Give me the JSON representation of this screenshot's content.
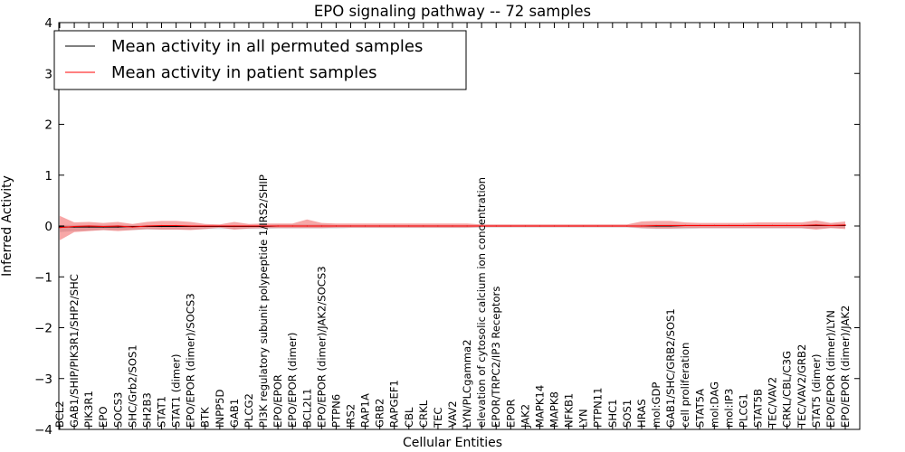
{
  "chart_data": {
    "type": "line",
    "title": "EPO signaling pathway -- 72 samples",
    "xlabel": "Cellular Entities",
    "ylabel": "Inferred Activity",
    "ylim": [
      -4,
      4
    ],
    "yticks": [
      4,
      3,
      2,
      1,
      0,
      -1,
      -2,
      -3,
      -4
    ],
    "ytick_labels": [
      "4",
      "3",
      "2",
      "1",
      "0",
      "−1",
      "−2",
      "−3",
      "−4"
    ],
    "categories": [
      "BCL2",
      "GAB1/SHIP/PIK3R1/SHP2/SHC",
      "PIK3R1",
      "EPO",
      "SOCS3",
      "SHC/Grb2/SOS1",
      "SH2B3",
      "STAT1",
      "STAT1 (dimer)",
      "EPO/EPOR (dimer)/SOCS3",
      "BTK",
      "INPP5D",
      "GAB1",
      "PLCG2",
      "PI3K regulatory subunit polypeptide 1/IRS2/SHIP",
      "EPO/EPOR",
      "EPO/EPOR (dimer)",
      "BCL2L1",
      "EPO/EPOR (dimer)/JAK2/SOCS3",
      "PTPN6",
      "IRS2",
      "RAP1A",
      "GRB2",
      "RAPGEF1",
      "CBL",
      "CRKL",
      "TEC",
      "VAV2",
      "LYN/PLCgamma2",
      "elevation of cytosolic calcium ion concentration",
      "EPOR/TRPC2/IP3 Receptors",
      "EPOR",
      "JAK2",
      "MAPK14",
      "MAPK8",
      "NFKB1",
      "LYN",
      "PTPN11",
      "SHC1",
      "SOS1",
      "HRAS",
      "mol:GDP",
      "GAB1/SHC/GRB2/SOS1",
      "cell proliferation",
      "STAT5A",
      "mol:DAG",
      "mol:IP3",
      "PLCG1",
      "STAT5B",
      "TEC/VAV2",
      "CRKL/CBL/C3G",
      "TEC/VAV2/GRB2",
      "STAT5 (dimer)",
      "EPO/EPOR (dimer)/LYN",
      "EPO/EPOR (dimer)/JAK2"
    ],
    "series": [
      {
        "name": "Mean activity in all permuted samples",
        "color": "#000000",
        "values": [
          -0.02,
          -0.02,
          -0.02,
          -0.02,
          -0.02,
          -0.01,
          -0.01,
          -0.01,
          -0.01,
          -0.01,
          -0.01,
          -0.01,
          -0.01,
          -0.01,
          -0.01,
          0.0,
          0.0,
          0.0,
          0.0,
          0.0,
          0.0,
          0.0,
          0.0,
          0.0,
          0.0,
          0.0,
          0.0,
          0.0,
          0.0,
          0.0,
          0.0,
          0.0,
          0.0,
          0.0,
          0.0,
          0.0,
          0.0,
          0.0,
          0.0,
          0.0,
          0.0,
          0.0,
          0.0,
          0.01,
          0.01,
          0.01,
          0.01,
          0.01,
          0.01,
          0.01,
          0.01,
          0.01,
          0.01,
          0.01,
          0.01
        ],
        "band_lower": [
          -0.12,
          -0.1,
          -0.09,
          -0.08,
          -0.08,
          -0.08,
          -0.07,
          -0.07,
          -0.07,
          -0.07,
          -0.06,
          -0.06,
          -0.06,
          -0.06,
          -0.06,
          -0.05,
          -0.05,
          -0.05,
          -0.05,
          -0.05,
          -0.04,
          -0.04,
          -0.04,
          -0.04,
          -0.04,
          -0.04,
          -0.04,
          -0.04,
          -0.04,
          -0.03,
          -0.03,
          -0.03,
          -0.03,
          -0.03,
          -0.03,
          -0.03,
          -0.03,
          -0.03,
          -0.03,
          -0.03,
          -0.05,
          -0.06,
          -0.06,
          -0.06,
          -0.05,
          -0.05,
          -0.05,
          -0.05,
          -0.05,
          -0.05,
          -0.05,
          -0.05,
          -0.05,
          -0.04,
          -0.04
        ],
        "band_upper": [
          0.02,
          0.02,
          0.02,
          0.02,
          0.02,
          0.02,
          0.02,
          0.02,
          0.02,
          0.02,
          0.02,
          0.02,
          0.02,
          0.02,
          0.02,
          0.03,
          0.03,
          0.03,
          0.03,
          0.02,
          0.02,
          0.02,
          0.02,
          0.02,
          0.02,
          0.02,
          0.02,
          0.02,
          0.02,
          0.02,
          0.02,
          0.02,
          0.02,
          0.02,
          0.02,
          0.02,
          0.02,
          0.02,
          0.02,
          0.02,
          0.03,
          0.03,
          0.03,
          0.03,
          0.03,
          0.03,
          0.03,
          0.03,
          0.03,
          0.03,
          0.03,
          0.03,
          0.04,
          0.04,
          0.04
        ]
      },
      {
        "name": "Mean activity in patient samples",
        "color": "#ff0000",
        "values": [
          -0.03,
          -0.01,
          0.0,
          -0.01,
          0.0,
          -0.02,
          0.0,
          0.01,
          0.01,
          0.0,
          0.0,
          0.0,
          0.0,
          0.0,
          0.0,
          0.0,
          0.0,
          0.0,
          0.0,
          0.0,
          0.0,
          0.0,
          0.0,
          0.0,
          0.0,
          0.0,
          0.0,
          0.0,
          0.0,
          0.0,
          0.0,
          0.0,
          0.0,
          0.0,
          0.0,
          0.0,
          0.0,
          0.0,
          0.0,
          0.0,
          0.0,
          0.01,
          0.01,
          0.01,
          0.01,
          0.01,
          0.01,
          0.01,
          0.01,
          0.01,
          0.01,
          0.01,
          0.02,
          0.01,
          0.02
        ],
        "band_lower": [
          -0.28,
          -0.12,
          -0.1,
          -0.08,
          -0.1,
          -0.08,
          -0.06,
          -0.07,
          -0.07,
          -0.08,
          -0.06,
          -0.03,
          -0.07,
          -0.05,
          -0.04,
          -0.04,
          -0.04,
          -0.04,
          -0.04,
          -0.03,
          -0.03,
          -0.03,
          -0.03,
          -0.03,
          -0.03,
          -0.03,
          -0.03,
          -0.03,
          -0.03,
          -0.02,
          -0.02,
          -0.02,
          -0.02,
          -0.02,
          -0.02,
          -0.02,
          -0.02,
          -0.02,
          -0.02,
          -0.02,
          -0.04,
          -0.05,
          -0.05,
          -0.04,
          -0.04,
          -0.04,
          -0.04,
          -0.04,
          -0.04,
          -0.04,
          -0.04,
          -0.04,
          -0.07,
          -0.04,
          -0.06
        ],
        "band_upper": [
          0.2,
          0.07,
          0.08,
          0.06,
          0.08,
          0.04,
          0.08,
          0.1,
          0.1,
          0.08,
          0.04,
          0.03,
          0.08,
          0.04,
          0.05,
          0.05,
          0.05,
          0.13,
          0.06,
          0.05,
          0.05,
          0.05,
          0.05,
          0.05,
          0.05,
          0.05,
          0.05,
          0.05,
          0.05,
          0.03,
          0.03,
          0.03,
          0.03,
          0.03,
          0.03,
          0.03,
          0.03,
          0.03,
          0.03,
          0.03,
          0.09,
          0.1,
          0.1,
          0.07,
          0.06,
          0.06,
          0.06,
          0.06,
          0.07,
          0.07,
          0.07,
          0.07,
          0.11,
          0.06,
          0.09
        ]
      }
    ],
    "legend_position": "top-left",
    "grid": false
  }
}
